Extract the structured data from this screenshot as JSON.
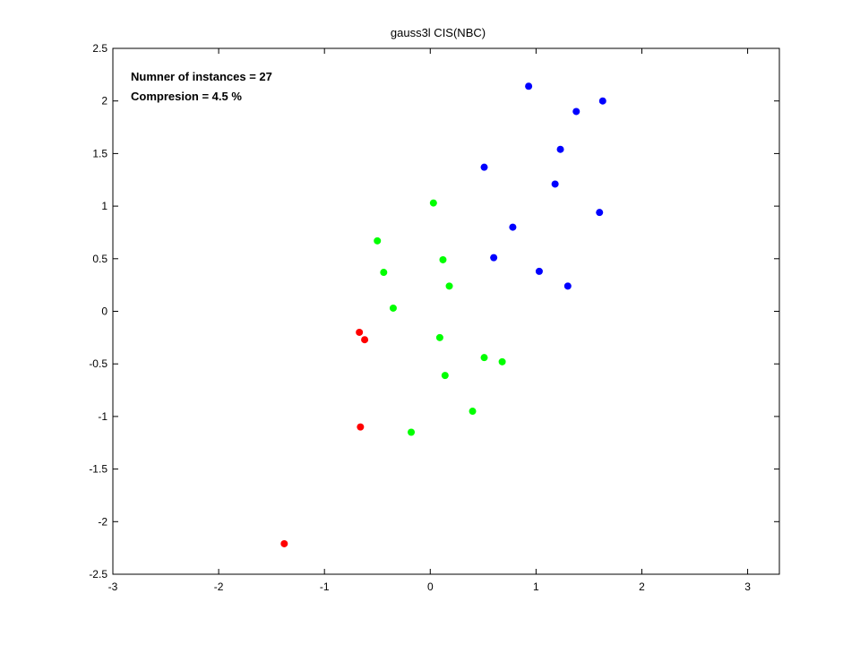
{
  "chart_data": {
    "type": "scatter",
    "title": "gauss3l CIS(NBC)",
    "xlabel": "",
    "ylabel": "",
    "xlim": [
      -3,
      3.3
    ],
    "ylim": [
      -2.5,
      2.5
    ],
    "xticks": [
      -3,
      -2,
      -1,
      0,
      1,
      2,
      3
    ],
    "yticks": [
      -2.5,
      -2,
      -1.5,
      -1,
      -0.5,
      0,
      0.5,
      1,
      1.5,
      2,
      2.5
    ],
    "grid": false,
    "annotations": [
      "Numner of instances = 27",
      "Compresion = 4.5 %"
    ],
    "series": [
      {
        "color": "#0000ff",
        "points": [
          [
            0.93,
            2.14
          ],
          [
            1.63,
            2.0
          ],
          [
            1.38,
            1.9
          ],
          [
            1.23,
            1.54
          ],
          [
            0.51,
            1.37
          ],
          [
            1.18,
            1.21
          ],
          [
            1.6,
            0.94
          ],
          [
            0.78,
            0.8
          ],
          [
            0.6,
            0.51
          ],
          [
            1.03,
            0.38
          ],
          [
            1.3,
            0.24
          ]
        ]
      },
      {
        "color": "#00ff00",
        "points": [
          [
            0.03,
            1.03
          ],
          [
            -0.5,
            0.67
          ],
          [
            0.12,
            0.49
          ],
          [
            -0.44,
            0.37
          ],
          [
            0.18,
            0.24
          ],
          [
            -0.35,
            0.03
          ],
          [
            0.09,
            -0.25
          ],
          [
            0.51,
            -0.44
          ],
          [
            0.68,
            -0.48
          ],
          [
            0.14,
            -0.61
          ],
          [
            0.4,
            -0.95
          ],
          [
            -0.18,
            -1.15
          ]
        ]
      },
      {
        "color": "#ff0000",
        "points": [
          [
            -0.67,
            -0.2
          ],
          [
            -0.62,
            -0.27
          ],
          [
            -0.66,
            -1.1
          ],
          [
            -1.38,
            -2.21
          ]
        ]
      }
    ]
  }
}
